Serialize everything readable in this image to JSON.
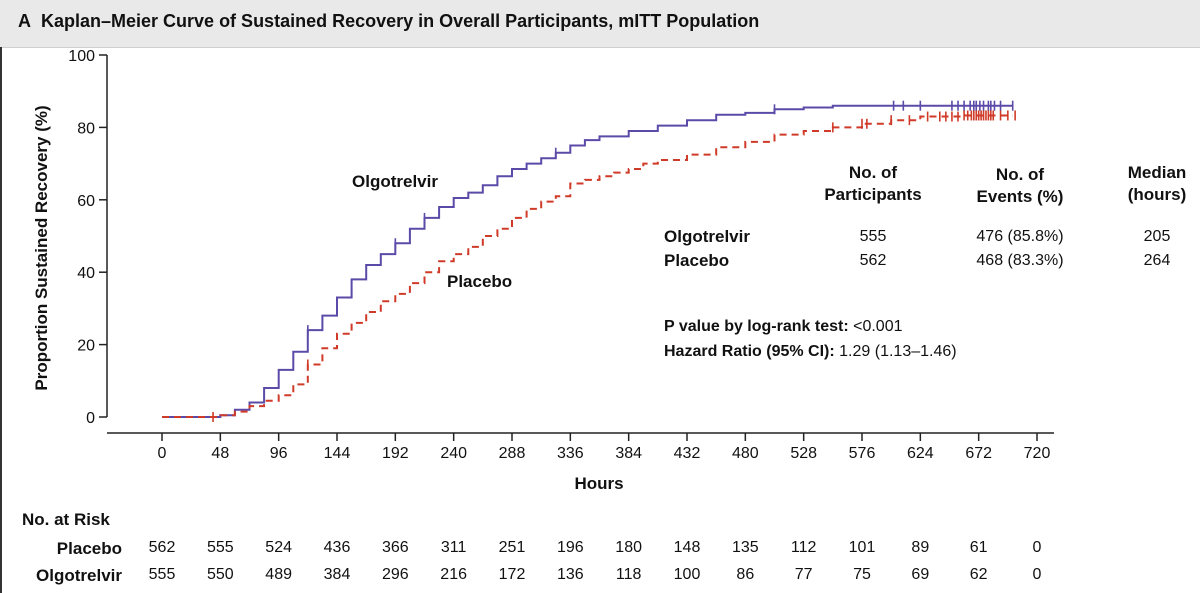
{
  "figure": {
    "panel_letter": "A",
    "title": "Kaplan–Meier Curve of Sustained Recovery in Overall Participants, mITT Population"
  },
  "chart_data": {
    "type": "line",
    "title": "Kaplan–Meier Curve of Sustained Recovery in Overall Participants, mITT Population",
    "xlabel": "Hours",
    "ylabel": "Proportion Sustained Recovery (%)",
    "xlim": [
      0,
      720
    ],
    "ylim": [
      0,
      100
    ],
    "x_ticks": [
      "0",
      "48",
      "96",
      "144",
      "192",
      "240",
      "288",
      "336",
      "384",
      "432",
      "480",
      "528",
      "576",
      "624",
      "672",
      "720"
    ],
    "y_ticks": [
      "0",
      "20",
      "40",
      "60",
      "80",
      "100"
    ],
    "grid": false,
    "series": [
      {
        "name": "Olgotrelvir",
        "color": "#5b4aa8",
        "style": "solid",
        "points": [
          [
            0,
            0
          ],
          [
            40,
            0
          ],
          [
            48,
            0.5
          ],
          [
            60,
            2
          ],
          [
            72,
            4
          ],
          [
            84,
            8
          ],
          [
            96,
            13
          ],
          [
            108,
            18
          ],
          [
            120,
            24
          ],
          [
            132,
            28
          ],
          [
            144,
            33
          ],
          [
            156,
            38
          ],
          [
            168,
            42
          ],
          [
            180,
            45
          ],
          [
            192,
            48
          ],
          [
            204,
            52
          ],
          [
            216,
            55
          ],
          [
            228,
            58
          ],
          [
            240,
            60.5
          ],
          [
            252,
            62
          ],
          [
            264,
            64
          ],
          [
            276,
            66.5
          ],
          [
            288,
            68.5
          ],
          [
            300,
            70
          ],
          [
            312,
            71.5
          ],
          [
            324,
            73
          ],
          [
            336,
            75
          ],
          [
            348,
            76.5
          ],
          [
            360,
            77.5
          ],
          [
            384,
            79
          ],
          [
            408,
            80.5
          ],
          [
            432,
            82
          ],
          [
            456,
            83.5
          ],
          [
            480,
            84
          ],
          [
            504,
            85
          ],
          [
            528,
            85.5
          ],
          [
            552,
            86
          ],
          [
            576,
            86
          ],
          [
            620,
            86
          ],
          [
            700,
            86
          ]
        ],
        "censor_marks": [
          120,
          192,
          216,
          324,
          504,
          602,
          610,
          624,
          650,
          655,
          660,
          665,
          668,
          670,
          673,
          676,
          680,
          682,
          685,
          690,
          700
        ]
      },
      {
        "name": "Placebo",
        "color": "#d03a28",
        "style": "dashed",
        "points": [
          [
            0,
            0
          ],
          [
            40,
            0
          ],
          [
            48,
            0.5
          ],
          [
            60,
            1.5
          ],
          [
            72,
            3
          ],
          [
            84,
            4.5
          ],
          [
            96,
            6
          ],
          [
            108,
            9
          ],
          [
            120,
            14.5
          ],
          [
            132,
            19
          ],
          [
            144,
            23
          ],
          [
            156,
            26
          ],
          [
            168,
            29
          ],
          [
            180,
            32
          ],
          [
            192,
            34
          ],
          [
            204,
            37
          ],
          [
            216,
            40
          ],
          [
            228,
            43
          ],
          [
            240,
            45
          ],
          [
            252,
            47
          ],
          [
            264,
            50
          ],
          [
            276,
            52
          ],
          [
            288,
            55
          ],
          [
            300,
            57.5
          ],
          [
            312,
            59.5
          ],
          [
            324,
            61
          ],
          [
            336,
            64.5
          ],
          [
            348,
            65.5
          ],
          [
            360,
            66.5
          ],
          [
            372,
            67.5
          ],
          [
            384,
            68.5
          ],
          [
            396,
            70
          ],
          [
            408,
            71
          ],
          [
            432,
            72.5
          ],
          [
            456,
            74.5
          ],
          [
            480,
            76
          ],
          [
            504,
            78
          ],
          [
            528,
            79
          ],
          [
            552,
            80
          ],
          [
            576,
            81
          ],
          [
            600,
            82
          ],
          [
            624,
            83
          ],
          [
            660,
            83.3
          ],
          [
            700,
            83.3
          ]
        ],
        "censor_marks": [
          42,
          120,
          552,
          576,
          580,
          600,
          615,
          630,
          640,
          645,
          650,
          655,
          660,
          663,
          666,
          668,
          670,
          672,
          674,
          676,
          678,
          680,
          682,
          684,
          690,
          696,
          702
        ]
      }
    ],
    "annotations": [
      "Olgotrelvir",
      "Placebo"
    ]
  },
  "summary_table": {
    "headers": {
      "participants": [
        "No. of",
        "Participants"
      ],
      "events": [
        "No. of",
        "Events (%)"
      ],
      "median": [
        "Median",
        "(hours)"
      ]
    },
    "rows": [
      {
        "group": "Olgotrelvir",
        "participants": "555",
        "events": "476 (85.8%)",
        "median": "205"
      },
      {
        "group": "Placebo",
        "participants": "562",
        "events": "468 (83.3%)",
        "median": "264"
      }
    ],
    "p_value_label": "P value by log-rank test:",
    "p_value": "<0.001",
    "hr_label": "Hazard Ratio (95% CI):",
    "hr_value": "1.29 (1.13–1.46)"
  },
  "at_risk": {
    "title": "No. at Risk",
    "rows": [
      {
        "group": "Placebo",
        "values": [
          "562",
          "555",
          "524",
          "436",
          "366",
          "311",
          "251",
          "196",
          "180",
          "148",
          "135",
          "112",
          "101",
          "89",
          "61",
          "0"
        ]
      },
      {
        "group": "Olgotrelvir",
        "values": [
          "555",
          "550",
          "489",
          "384",
          "296",
          "216",
          "172",
          "136",
          "118",
          "100",
          "86",
          "77",
          "75",
          "69",
          "62",
          "0"
        ]
      }
    ]
  }
}
